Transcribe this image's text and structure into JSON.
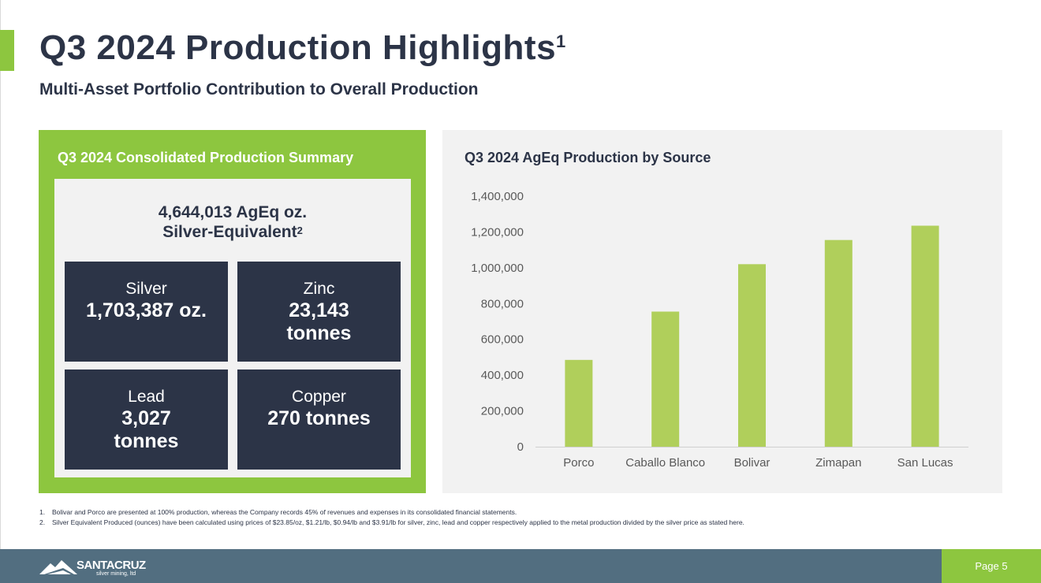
{
  "header": {
    "title": "Q3 2024 Production Highlights",
    "title_sup": "1",
    "subtitle": "Multi-Asset Portfolio Contribution to Overall Production"
  },
  "summary": {
    "heading": "Q3 2024 Consolidated Production Summary",
    "total_line1": "4,644,013 AgEq oz.",
    "total_line2": "Silver-Equivalent",
    "total_sup": "2",
    "metals": {
      "silver": {
        "label": "Silver",
        "value_line1": "1,703,387 oz.",
        "value_line2": ""
      },
      "zinc": {
        "label": "Zinc",
        "value_line1": "23,143",
        "value_line2": "tonnes"
      },
      "lead": {
        "label": "Lead",
        "value_line1": "3,027",
        "value_line2": "tonnes"
      },
      "copper": {
        "label": "Copper",
        "value_line1": "270 tonnes",
        "value_line2": ""
      }
    }
  },
  "chart_data": {
    "type": "bar",
    "title": "Q3 2024 AgEq Production by Source",
    "categories": [
      "Porco",
      "Caballo Blanco",
      "Bolivar",
      "Zimapan",
      "San Lucas"
    ],
    "values": [
      485000,
      755000,
      1020000,
      1155000,
      1235000
    ],
    "ylim": [
      0,
      1400000
    ],
    "yticks": [
      "0",
      "200,000",
      "400,000",
      "600,000",
      "800,000",
      "1,000,000",
      "1,200,000",
      "1,400,000"
    ],
    "xlabel": "",
    "ylabel": "",
    "grid": false,
    "legend": "none",
    "bar_color": "#b0cf5b"
  },
  "footnotes": [
    {
      "num": "1.",
      "text": "Bolivar and Porco are presented at 100% production, whereas the Company records 45% of revenues and expenses in its consolidated financial statements."
    },
    {
      "num": "2.",
      "text": "Silver Equivalent Produced (ounces) have been calculated using prices of $23.85/oz, $1.21/lb, $0.94/lb and $3.91/lb for silver, zinc, lead and copper respectively applied to the metal production divided by the silver price as stated here."
    }
  ],
  "footer": {
    "logo_name": "SANTACRUZ",
    "logo_tagline": "silver mining, ltd",
    "page_label": "Page 5"
  },
  "colors": {
    "brand_green": "#8dc63f",
    "navy": "#2c3447",
    "footer_slate": "#526e80"
  }
}
